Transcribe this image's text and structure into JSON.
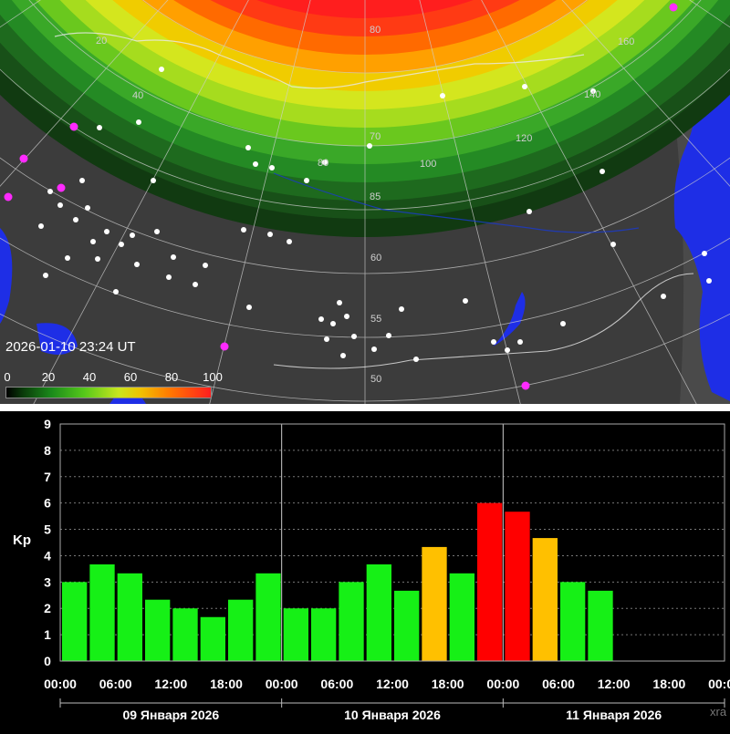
{
  "map": {
    "timestamp": "2026-01-10 23:24 UT",
    "colorbar": {
      "ticks": [
        "0",
        "20",
        "40",
        "60",
        "80",
        "100"
      ],
      "min": 0,
      "max": 100
    },
    "grid_labels": [
      "20",
      "40",
      "70",
      "80",
      "100",
      "120",
      "140",
      "160",
      "80",
      "85",
      "60",
      "55",
      "50"
    ],
    "colors": {
      "land": "#3c3c3c",
      "sea": "#1e2ee6",
      "night": "#4a4a4a"
    }
  },
  "chart_data": {
    "type": "bar",
    "ylabel": "Kp",
    "ylim": [
      0,
      9
    ],
    "yticks": [
      "0",
      "1",
      "2",
      "3",
      "4",
      "5",
      "6",
      "7",
      "8",
      "9"
    ],
    "xticks": [
      "00:00",
      "06:00",
      "12:00",
      "18:00",
      "00:00",
      "06:00",
      "12:00",
      "18:00",
      "00:00",
      "06:00",
      "12:00",
      "18:00",
      "00:00"
    ],
    "days": [
      "09 Января 2026",
      "10 Января 2026",
      "11 Января 2026"
    ],
    "values": [
      3.0,
      3.67,
      3.33,
      2.33,
      2.0,
      1.67,
      2.33,
      3.33,
      2.0,
      2.0,
      3.0,
      3.67,
      2.67,
      4.33,
      3.33,
      6.0,
      5.67,
      4.67,
      3.0,
      2.67
    ],
    "colors": {
      "quiet": "#16f016",
      "active": "#ffc000",
      "storm": "#ff0000"
    },
    "thresholds": {
      "active": 4,
      "storm": 5
    },
    "grid": true,
    "watermark": "xra"
  }
}
